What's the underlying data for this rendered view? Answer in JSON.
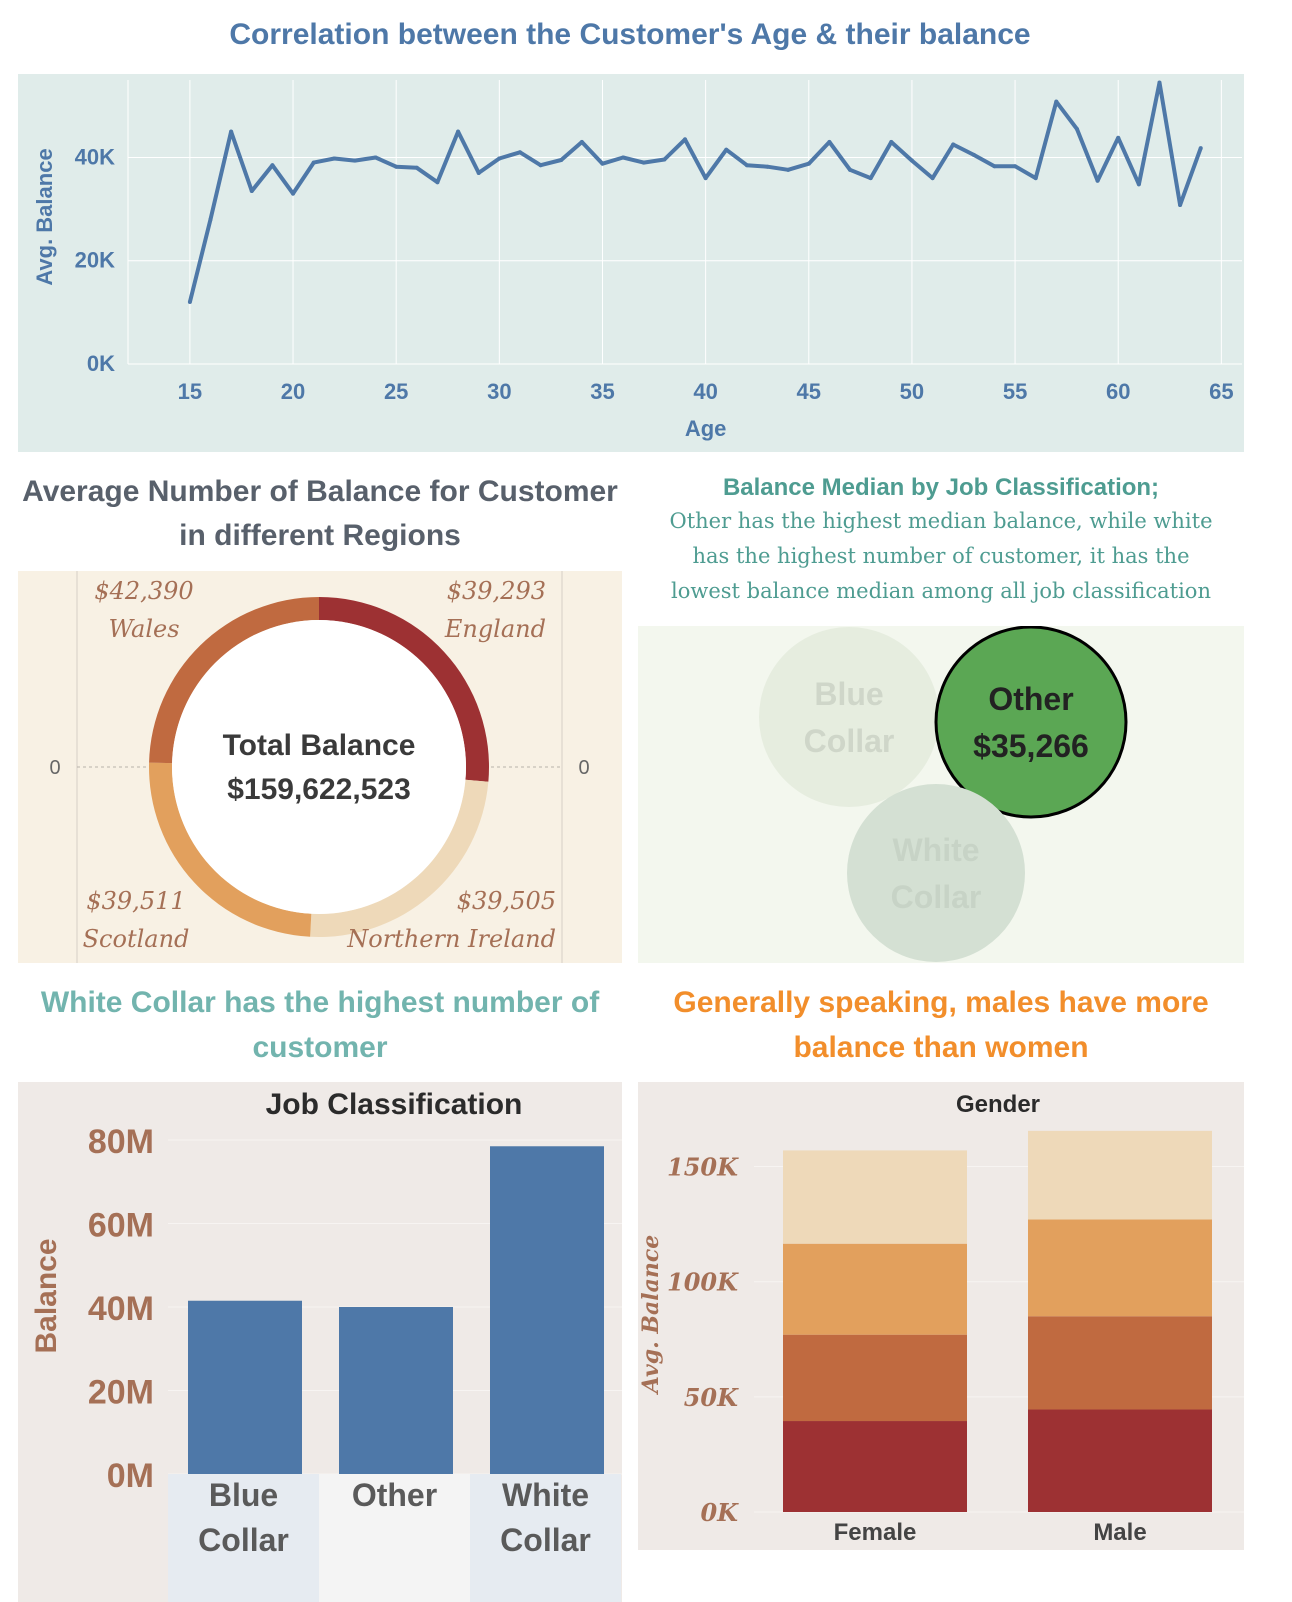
{
  "colors": {
    "line_bg": "#e0ecea",
    "line_stroke": "#4e78a8",
    "blue_text": "#4e78a8",
    "brown_text": "#a57056",
    "donut_bg": "#f8f1e4",
    "bubble_bg": "#f3f7ee",
    "teal_text": "#4e9c91",
    "teal_light": "#72b4ae",
    "orange_text": "#f28e2b",
    "bar_bg": "#efeae7",
    "bar_blue": "#4e78a8",
    "wales": "#9d3133",
    "england": "#eed9b9",
    "scotland": "#c06a40",
    "nireland": "#e2a05d",
    "other_bubble": "#5ba754"
  },
  "line_section": {
    "title": "Correlation between the Customer's Age & their balance"
  },
  "donut_section": {
    "title_line1": "Average Number of Balance for Customer",
    "title_line2": "in different Regions",
    "center_label": "Total Balance",
    "center_value": "$159,622,523",
    "axis_left": "0",
    "axis_right": "0",
    "regions": [
      {
        "name": "Wales",
        "value_text": "$42,390"
      },
      {
        "name": "England",
        "value_text": "$39,293"
      },
      {
        "name": "Scotland",
        "value_text": "$39,511"
      },
      {
        "name": "Northern Ireland",
        "value_text": "$39,505"
      }
    ]
  },
  "bubble_section": {
    "title": "Balance Median by Job Classification;",
    "subtitle_line1": "Other has the highest median balance, while white",
    "subtitle_line2": "has the highest number of customer, it has the",
    "subtitle_line3": "lowest balance median among all job classification",
    "bubbles": [
      {
        "line1": "Blue",
        "line2": "Collar"
      },
      {
        "line1": "Other",
        "line2": "$35,266"
      },
      {
        "line1": "White",
        "line2": "Collar"
      }
    ]
  },
  "bar_section": {
    "title_line1": "White Collar has the highest number of",
    "title_line2": "customer"
  },
  "gender_section": {
    "title_line1": "Generally speaking, males have more",
    "title_line2": "balance than women"
  },
  "chart_data": [
    {
      "type": "line",
      "title": "",
      "xlabel": "Age",
      "ylabel": "Avg. Balance",
      "xlim": [
        12,
        66
      ],
      "ylim": [
        0,
        55000
      ],
      "x_ticks": [
        15,
        20,
        25,
        30,
        35,
        40,
        45,
        50,
        55,
        60,
        65
      ],
      "y_tick_values": [
        0,
        20000,
        40000
      ],
      "y_tick_labels": [
        "0K",
        "20K",
        "40K"
      ],
      "grid": true,
      "x": [
        15,
        16,
        17,
        18,
        19,
        20,
        21,
        22,
        23,
        24,
        25,
        26,
        27,
        28,
        29,
        30,
        31,
        32,
        33,
        34,
        35,
        36,
        37,
        38,
        39,
        40,
        41,
        42,
        43,
        44,
        45,
        46,
        47,
        48,
        49,
        50,
        51,
        52,
        53,
        54,
        55,
        56,
        57,
        58,
        59,
        60,
        61,
        62,
        63,
        64
      ],
      "values": [
        12000,
        28000,
        45000,
        33500,
        38500,
        33000,
        39000,
        39800,
        39400,
        40000,
        38200,
        38000,
        35200,
        45000,
        37000,
        39800,
        41000,
        38500,
        39500,
        43000,
        38800,
        40000,
        39000,
        39600,
        43500,
        36000,
        41500,
        38500,
        38200,
        37600,
        38800,
        43000,
        37600,
        36000,
        43000,
        39400,
        36000,
        42500,
        40500,
        38300,
        38300,
        36000,
        50800,
        45500,
        35500,
        43800,
        34800,
        54500,
        30800,
        41800
      ]
    },
    {
      "type": "pie",
      "title": "",
      "donut": true,
      "categories": [
        "Wales",
        "England",
        "Northern Ireland",
        "Scotland"
      ],
      "values": [
        42390,
        39293,
        39505,
        39511
      ],
      "total": 159622523
    },
    {
      "type": "scatter",
      "title": "Balance Median by Job Classification;",
      "categories": [
        "Blue Collar",
        "Other",
        "White Collar"
      ],
      "highlight": "Other",
      "values": [
        null,
        35266,
        null
      ]
    },
    {
      "type": "bar",
      "title": "Job Classification",
      "xlabel": "",
      "ylabel": "Balance",
      "categories": [
        "Blue Collar",
        "Other",
        "White Collar"
      ],
      "category_lines": [
        [
          "Blue",
          "Collar"
        ],
        [
          "Other"
        ],
        [
          "White",
          "Collar"
        ]
      ],
      "values": [
        41500000,
        40000000,
        78500000
      ],
      "ylim": [
        0,
        80000000
      ],
      "y_tick_values": [
        0,
        20000000,
        40000000,
        60000000,
        80000000
      ],
      "y_tick_labels": [
        "0M",
        "20M",
        "40M",
        "60M",
        "80M"
      ],
      "grid": true
    },
    {
      "type": "bar",
      "stacked": true,
      "title": "Gender",
      "xlabel": "",
      "ylabel": "Avg. Balance",
      "categories": [
        "Female",
        "Male"
      ],
      "series": [
        {
          "values": [
            39500,
            44500
          ]
        },
        {
          "values": [
            37500,
            40500
          ]
        },
        {
          "values": [
            39500,
            42000
          ]
        },
        {
          "values": [
            40500,
            38500
          ]
        }
      ],
      "ylim": [
        0,
        165000
      ],
      "y_tick_values": [
        0,
        50000,
        100000,
        150000
      ],
      "y_tick_labels": [
        "0K",
        "50K",
        "100K",
        "150K"
      ],
      "grid": true
    }
  ]
}
